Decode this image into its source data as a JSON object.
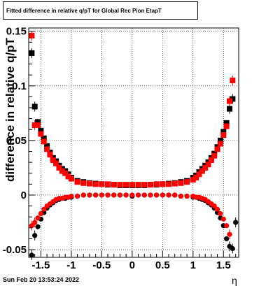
{
  "header": {
    "title": "Fitted difference in relative q/pT for Global Rec Pion EtapT"
  },
  "footer": {
    "timestamp": "Sun Feb 20 13:53:24 2022"
  },
  "chart_data": {
    "type": "scatter",
    "title": "Fitted difference in relative q/pT for Global Rec Pion EtapT",
    "xlabel": "η",
    "ylabel": "difference in relative q/pT",
    "xlim": [
      -1.7,
      1.75
    ],
    "ylim": [
      -0.057,
      0.153
    ],
    "xticks": [
      "-1.5",
      "-1",
      "-0.5",
      "0",
      "0.5",
      "1",
      "1.5"
    ],
    "xtick_values": [
      -1.5,
      -1,
      -0.5,
      0,
      0.5,
      1,
      1.5
    ],
    "yticks": [
      "-0.05",
      "0",
      "0.05",
      "0.1",
      "0.15"
    ],
    "ytick_values": [
      -0.05,
      0,
      0.05,
      0.1,
      0.15
    ],
    "grid": true,
    "colors": {
      "black_series": "#000000",
      "red_series": "#ff0000"
    },
    "series": [
      {
        "marker": "square",
        "color": "#000000",
        "x": [
          -1.65,
          -1.6,
          -1.55,
          -1.5,
          -1.45,
          -1.4,
          -1.35,
          -1.3,
          -1.25,
          -1.2,
          -1.15,
          -1.1,
          -1.05,
          -1.0,
          -0.9,
          -0.8,
          -0.7,
          -0.6,
          -0.5,
          -0.4,
          -0.3,
          -0.2,
          -0.1,
          0.0,
          0.1,
          0.2,
          0.3,
          0.4,
          0.5,
          0.6,
          0.7,
          0.8,
          0.9,
          1.0,
          1.05,
          1.1,
          1.15,
          1.2,
          1.25,
          1.3,
          1.35,
          1.4,
          1.45,
          1.5,
          1.55,
          1.6,
          1.65
        ],
        "y": [
          0.13,
          0.081,
          0.067,
          0.059,
          0.052,
          0.045,
          0.039,
          0.034,
          0.031,
          0.027,
          0.024,
          0.022,
          0.019,
          0.016,
          0.013,
          0.012,
          0.011,
          0.0105,
          0.01,
          0.0095,
          0.0095,
          0.009,
          0.009,
          0.009,
          0.009,
          0.009,
          0.0095,
          0.0095,
          0.01,
          0.0105,
          0.011,
          0.012,
          0.013,
          0.016,
          0.018,
          0.021,
          0.024,
          0.027,
          0.03,
          0.034,
          0.038,
          0.044,
          0.05,
          0.058,
          0.066,
          0.079,
          0.088
        ]
      },
      {
        "marker": "square",
        "color": "#ff0000",
        "x": [
          -1.65,
          -1.6,
          -1.55,
          -1.5,
          -1.45,
          -1.4,
          -1.35,
          -1.3,
          -1.25,
          -1.2,
          -1.15,
          -1.1,
          -1.05,
          -1.0,
          -0.9,
          -0.8,
          -0.7,
          -0.6,
          -0.5,
          -0.4,
          -0.3,
          -0.2,
          -0.1,
          0.0,
          0.1,
          0.2,
          0.3,
          0.4,
          0.5,
          0.6,
          0.7,
          0.8,
          0.9,
          1.0,
          1.05,
          1.1,
          1.15,
          1.2,
          1.25,
          1.3,
          1.35,
          1.4,
          1.45,
          1.5,
          1.55,
          1.6,
          1.65
        ],
        "y": [
          0.146,
          0.064,
          0.064,
          0.056,
          0.049,
          0.042,
          0.037,
          0.032,
          0.029,
          0.025,
          0.022,
          0.02,
          0.017,
          0.015,
          0.012,
          0.011,
          0.0105,
          0.01,
          0.01,
          0.01,
          0.0095,
          0.0095,
          0.0095,
          0.0095,
          0.0095,
          0.0095,
          0.0095,
          0.01,
          0.01,
          0.01,
          0.0105,
          0.011,
          0.012,
          0.014,
          0.016,
          0.019,
          0.022,
          0.025,
          0.028,
          0.032,
          0.036,
          0.042,
          0.047,
          0.055,
          0.063,
          0.086,
          0.105
        ]
      },
      {
        "marker": "circle",
        "color": "#000000",
        "x": [
          -1.65,
          -1.6,
          -1.55,
          -1.5,
          -1.45,
          -1.4,
          -1.35,
          -1.3,
          -1.25,
          -1.2,
          -1.15,
          -1.1,
          -1.05,
          -1.0,
          -0.9,
          -0.8,
          -0.7,
          -0.6,
          -0.5,
          -0.4,
          -0.3,
          -0.2,
          -0.1,
          0.0,
          0.1,
          0.2,
          0.3,
          0.4,
          0.5,
          0.6,
          0.7,
          0.8,
          0.9,
          1.0,
          1.05,
          1.1,
          1.15,
          1.2,
          1.25,
          1.3,
          1.35,
          1.4,
          1.45,
          1.5,
          1.55,
          1.6,
          1.65,
          1.7
        ],
        "y": [
          -0.055,
          -0.037,
          -0.029,
          -0.022,
          -0.016,
          -0.012,
          -0.009,
          -0.007,
          -0.005,
          -0.004,
          -0.003,
          -0.003,
          -0.002,
          -0.002,
          -0.001,
          0.0,
          0.0,
          0.0,
          0.0,
          0.0,
          0.0,
          0.0,
          0.0,
          -0.001,
          0.0,
          0.0,
          0.0,
          0.0,
          0.0,
          0.0,
          0.0,
          -0.001,
          -0.001,
          -0.002,
          -0.002,
          -0.003,
          -0.004,
          -0.005,
          -0.007,
          -0.009,
          -0.012,
          -0.016,
          -0.021,
          -0.028,
          -0.04,
          -0.047,
          -0.049,
          -0.025
        ]
      },
      {
        "marker": "circle",
        "color": "#ff0000",
        "x": [
          -1.65,
          -1.6,
          -1.55,
          -1.5,
          -1.45,
          -1.4,
          -1.35,
          -1.3,
          -1.25,
          -1.2,
          -1.15,
          -1.1,
          -1.05,
          -1.0,
          -0.9,
          -0.8,
          -0.7,
          -0.6,
          -0.5,
          -0.4,
          -0.3,
          -0.2,
          -0.1,
          0.0,
          0.1,
          0.2,
          0.3,
          0.4,
          0.5,
          0.6,
          0.7,
          0.8,
          0.9,
          1.0,
          1.05,
          1.1,
          1.15,
          1.2,
          1.25,
          1.3,
          1.35,
          1.4,
          1.45,
          1.5,
          1.55,
          1.6
        ],
        "y": [
          -0.028,
          -0.025,
          -0.021,
          -0.017,
          -0.013,
          -0.01,
          -0.008,
          -0.006,
          -0.004,
          -0.003,
          -0.003,
          -0.002,
          -0.002,
          -0.001,
          -0.001,
          0.0,
          0.0,
          0.0,
          0.0,
          0.0,
          0.0,
          0.0,
          0.0,
          0.0,
          0.0,
          0.0,
          0.0,
          0.0,
          0.0,
          0.0,
          0.0,
          -0.001,
          -0.001,
          -0.001,
          -0.002,
          -0.002,
          -0.003,
          -0.004,
          -0.006,
          -0.008,
          -0.01,
          -0.013,
          -0.017,
          -0.022,
          -0.028,
          -0.036
        ]
      }
    ]
  }
}
